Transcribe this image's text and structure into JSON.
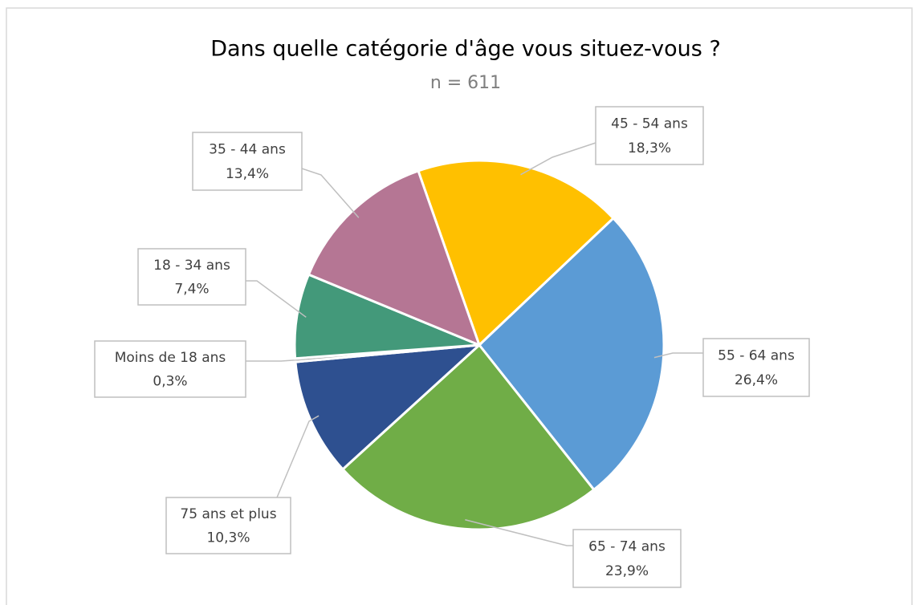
{
  "chart_data": {
    "type": "pie",
    "title": "Dans quelle catégorie d'âge vous situez-vous ?",
    "subtitle": "n = 611",
    "categories": [
      "45 - 54 ans",
      "55 - 64 ans",
      "65 - 74 ans",
      "75 ans et plus",
      "Moins de 18 ans",
      "18 - 34 ans",
      "35 - 44 ans"
    ],
    "values": [
      18.3,
      26.4,
      23.9,
      10.3,
      0.3,
      7.4,
      13.4
    ],
    "value_labels": [
      "18,3%",
      "26,4%",
      "23,9%",
      "10,3%",
      "0,3%",
      "7,4%",
      "13,4%"
    ],
    "colors": [
      "#ffc000",
      "#5b9bd5",
      "#70ad47",
      "#2e5090",
      "#a5a5a5",
      "#43997a",
      "#b57694"
    ]
  }
}
